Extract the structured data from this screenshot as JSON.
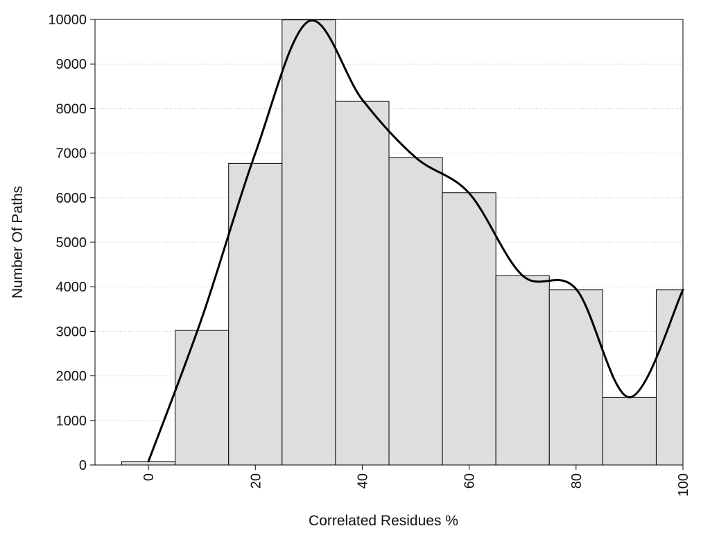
{
  "chart_data": {
    "type": "bar",
    "subtype": "histogram-with-smoothed-curve",
    "title": "",
    "xlabel": "Correlated Residues %",
    "ylabel": "Number Of Paths",
    "xlim": [
      -10,
      100
    ],
    "ylim": [
      0,
      10000
    ],
    "grid": "horizontal dotted",
    "x_ticks": [
      "0",
      "20",
      "40",
      "60",
      "80",
      "100"
    ],
    "y_ticks": [
      "0",
      "1000",
      "2000",
      "3000",
      "4000",
      "5000",
      "6000",
      "7000",
      "8000",
      "9000",
      "10000"
    ],
    "bar_width": 10,
    "bar_color": "#dedede",
    "bars": [
      {
        "x": 0,
        "value": 80
      },
      {
        "x": 10,
        "value": 3020
      },
      {
        "x": 20,
        "value": 6770
      },
      {
        "x": 30,
        "value": 9990
      },
      {
        "x": 40,
        "value": 8160
      },
      {
        "x": 50,
        "value": 6900
      },
      {
        "x": 60,
        "value": 6110
      },
      {
        "x": 70,
        "value": 4250
      },
      {
        "x": 80,
        "value": 3930
      },
      {
        "x": 90,
        "value": 1520
      },
      {
        "x": 100,
        "value": 3930
      }
    ],
    "curve_color": "#000000",
    "curve": [
      {
        "x": 0,
        "y": 80
      },
      {
        "x": 10,
        "y": 3300
      },
      {
        "x": 20,
        "y": 7000
      },
      {
        "x": 30,
        "y": 9960
      },
      {
        "x": 40,
        "y": 8200
      },
      {
        "x": 50,
        "y": 6900
      },
      {
        "x": 60,
        "y": 6100
      },
      {
        "x": 70,
        "y": 4250
      },
      {
        "x": 80,
        "y": 3950
      },
      {
        "x": 90,
        "y": 1520
      },
      {
        "x": 100,
        "y": 3930
      }
    ]
  }
}
